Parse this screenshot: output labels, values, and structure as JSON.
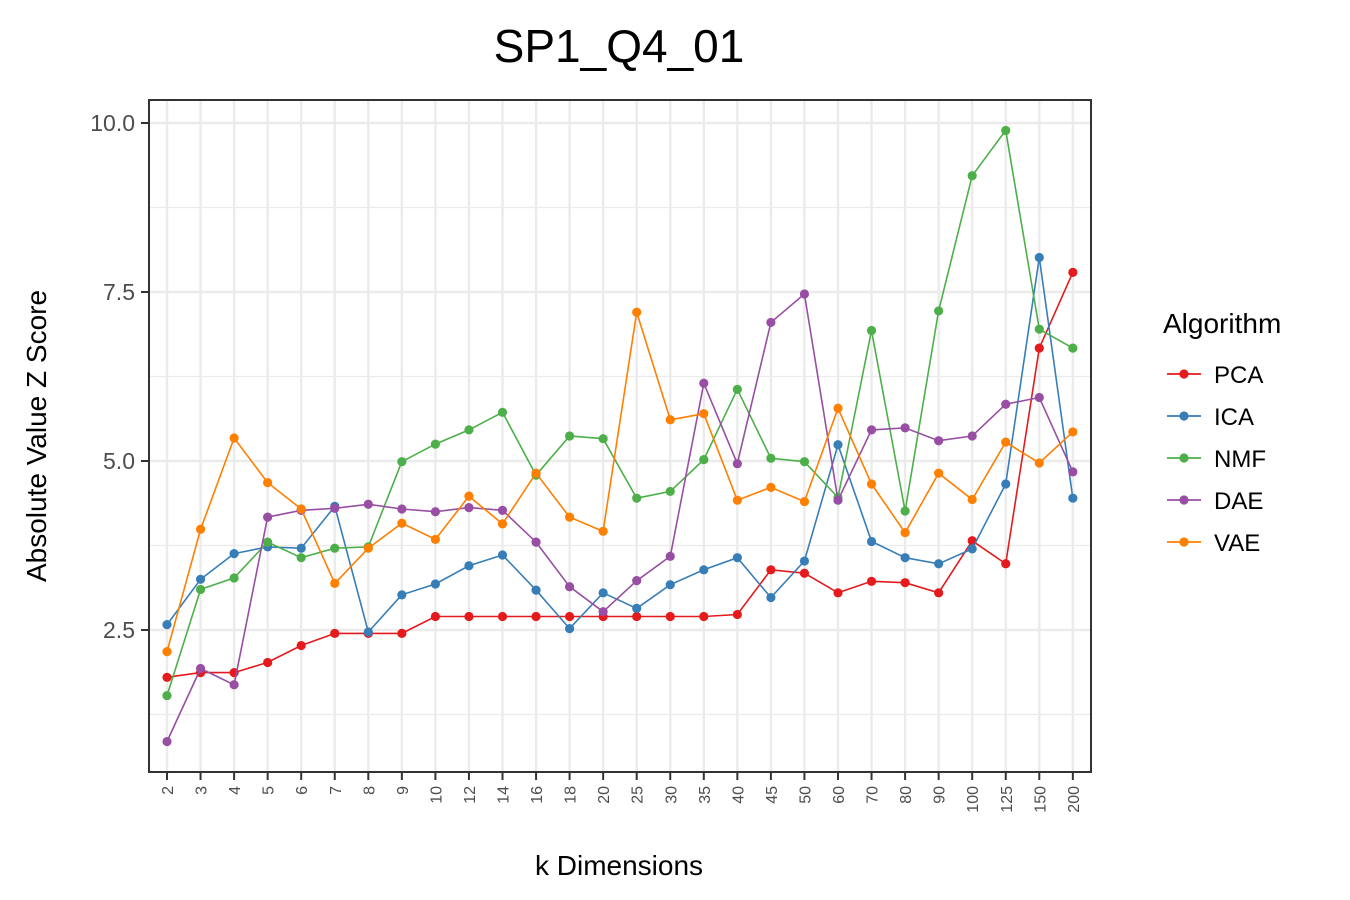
{
  "chart_data": {
    "type": "line",
    "title": "SP1_Q4_01",
    "xlabel": "k Dimensions",
    "ylabel": "Absolute Value Z Score",
    "categories": [
      "2",
      "3",
      "4",
      "5",
      "6",
      "7",
      "8",
      "9",
      "10",
      "12",
      "14",
      "16",
      "18",
      "20",
      "25",
      "30",
      "35",
      "40",
      "45",
      "50",
      "60",
      "70",
      "80",
      "90",
      "100",
      "125",
      "150",
      "200"
    ],
    "yticks": [
      "2.5",
      "5.0",
      "7.5",
      "10.0"
    ],
    "ylim": [
      0.6,
      10.4
    ],
    "grid": true,
    "legend_title": "Algorithm",
    "legend_position": "right",
    "series": [
      {
        "name": "PCA",
        "color": "#e41a1c",
        "values": [
          1.8,
          1.87,
          1.87,
          2.02,
          2.27,
          2.45,
          2.45,
          2.45,
          2.7,
          2.7,
          2.7,
          2.7,
          2.7,
          2.7,
          2.7,
          2.7,
          2.7,
          2.73,
          3.39,
          3.34,
          3.05,
          3.22,
          3.2,
          3.05,
          3.82,
          3.48,
          6.67,
          7.79
        ]
      },
      {
        "name": "ICA",
        "color": "#377eb8",
        "values": [
          2.58,
          3.25,
          3.63,
          3.73,
          3.71,
          4.33,
          2.47,
          3.02,
          3.18,
          3.45,
          3.61,
          3.09,
          2.52,
          3.05,
          2.82,
          3.17,
          3.39,
          3.57,
          2.98,
          3.52,
          5.24,
          3.81,
          3.57,
          3.48,
          3.7,
          4.66,
          8.01,
          4.45
        ]
      },
      {
        "name": "NMF",
        "color": "#4daf4a",
        "values": [
          1.53,
          3.1,
          3.27,
          3.8,
          3.57,
          3.71,
          3.73,
          4.99,
          5.25,
          5.46,
          5.72,
          4.79,
          5.37,
          5.33,
          4.45,
          4.55,
          5.02,
          6.06,
          5.04,
          4.99,
          4.46,
          6.93,
          4.26,
          7.22,
          9.22,
          9.89,
          6.95,
          6.67
        ]
      },
      {
        "name": "DAE",
        "color": "#984ea3",
        "values": [
          0.85,
          1.93,
          1.69,
          4.17,
          4.27,
          4.3,
          4.36,
          4.29,
          4.25,
          4.31,
          4.27,
          3.8,
          3.14,
          2.77,
          3.23,
          3.59,
          6.15,
          4.96,
          7.05,
          7.47,
          4.42,
          5.46,
          5.49,
          5.3,
          5.37,
          5.84,
          5.94,
          4.84
        ]
      },
      {
        "name": "VAE",
        "color": "#ff7f00",
        "values": [
          2.18,
          3.99,
          5.34,
          4.68,
          4.29,
          3.19,
          3.71,
          4.08,
          3.84,
          4.48,
          4.07,
          4.82,
          4.17,
          3.96,
          7.2,
          5.61,
          5.7,
          4.42,
          4.61,
          4.4,
          5.78,
          4.66,
          3.94,
          4.82,
          4.43,
          5.28,
          4.97,
          5.43
        ]
      }
    ]
  }
}
